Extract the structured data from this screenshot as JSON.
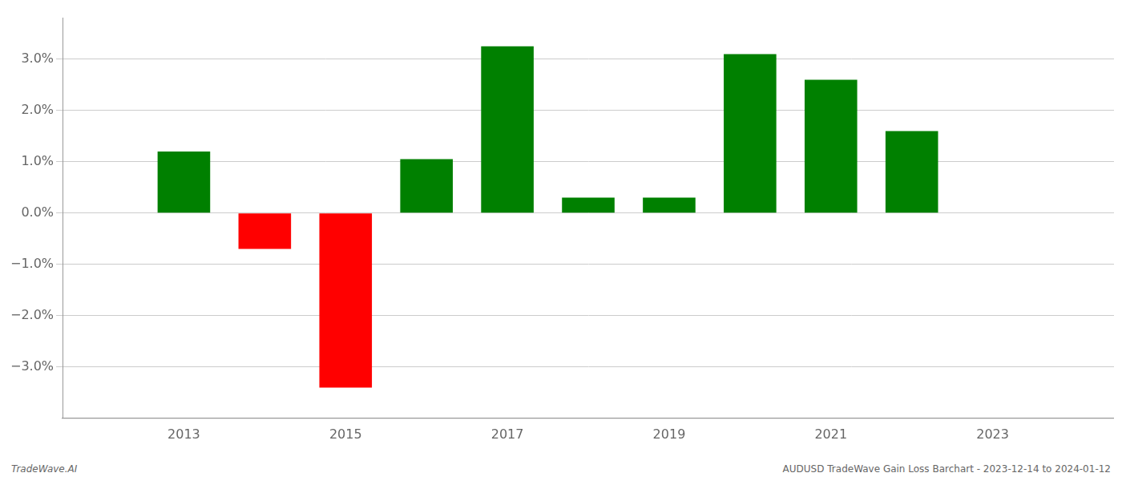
{
  "chart_data": {
    "type": "bar",
    "x": [
      2013,
      2014,
      2015,
      2016,
      2017,
      2018,
      2019,
      2020,
      2021,
      2022
    ],
    "values": [
      0.012,
      -0.007,
      -0.034,
      0.0105,
      0.0325,
      0.003,
      0.003,
      0.031,
      0.026,
      0.016
    ],
    "colors": [
      "#008000",
      "#ff0000",
      "#ff0000",
      "#008000",
      "#008000",
      "#008000",
      "#008000",
      "#008000",
      "#008000",
      "#008000"
    ],
    "xlim": [
      2011.5,
      2024.5
    ],
    "xticks": [
      2013,
      2015,
      2017,
      2019,
      2021,
      2023
    ],
    "ylim": [
      -0.04,
      0.038
    ],
    "yticks": [
      {
        "value": -0.03,
        "label": "−3.0%"
      },
      {
        "value": -0.02,
        "label": "−2.0%"
      },
      {
        "value": -0.01,
        "label": "−1.0%"
      },
      {
        "value": 0.0,
        "label": "0.0%"
      },
      {
        "value": 0.01,
        "label": "1.0%"
      },
      {
        "value": 0.02,
        "label": "2.0%"
      },
      {
        "value": 0.03,
        "label": "3.0%"
      }
    ],
    "grid": true,
    "annotations": [
      "TradeWave.AI",
      "AUDUSD TradeWave Gain Loss Barchart - 2023-12-14 to 2024-01-12"
    ]
  }
}
